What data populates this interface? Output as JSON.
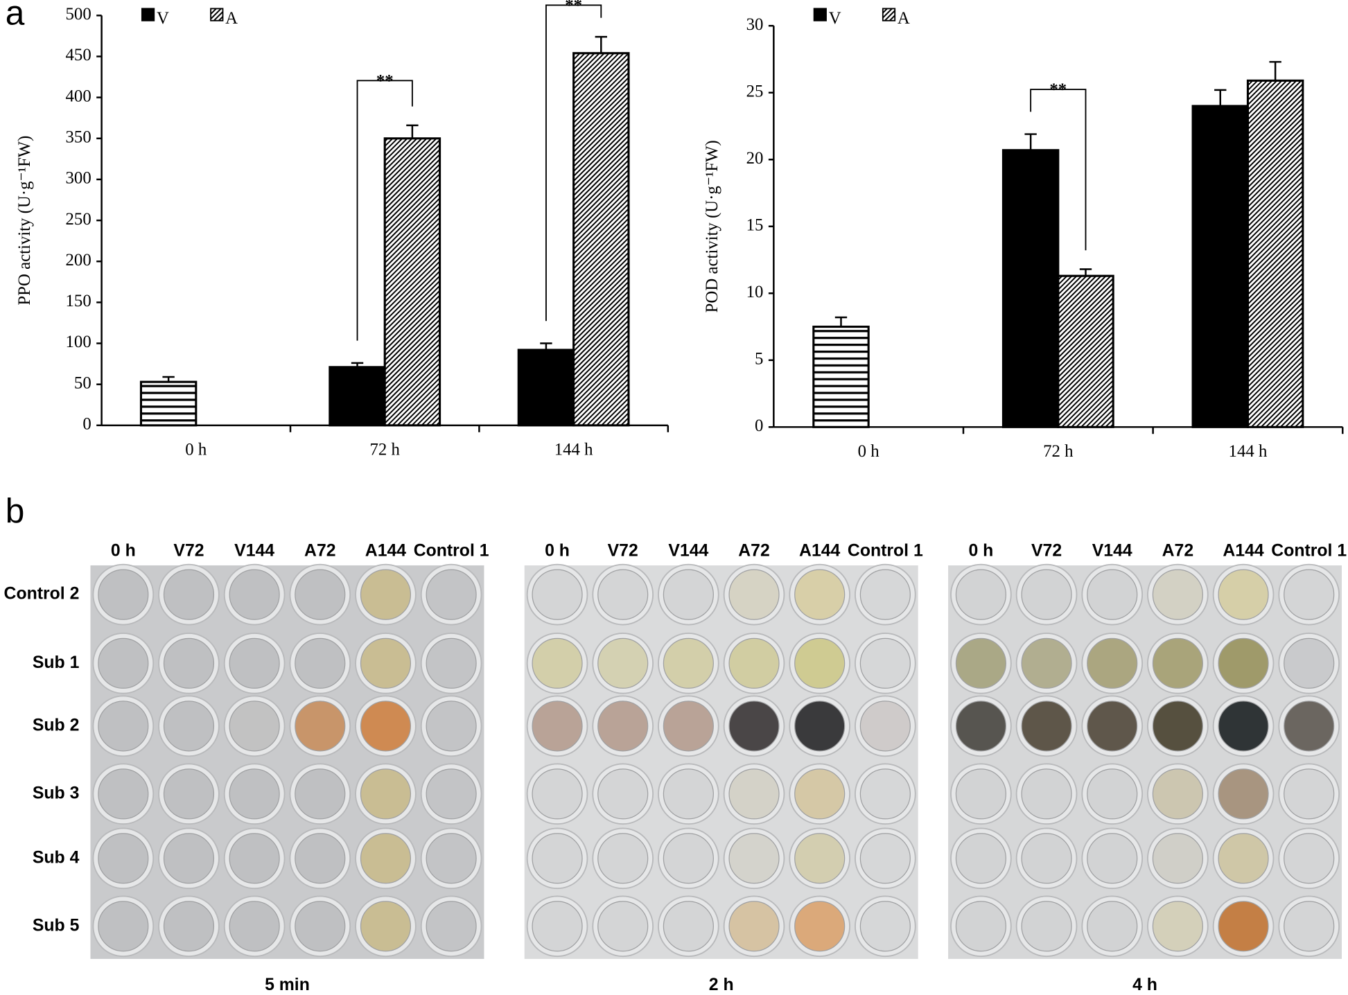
{
  "panel_labels": [
    "a",
    "b"
  ],
  "chart_data": [
    {
      "type": "bar",
      "ylabel": "PPO activity (U·g⁻¹FW)",
      "categories": [
        "0 h",
        "72 h",
        "144 h"
      ],
      "ylim": [
        0,
        500
      ],
      "yticks": [
        0,
        50,
        100,
        150,
        200,
        250,
        300,
        350,
        400,
        450,
        500
      ],
      "grid": false,
      "legend": "top-left",
      "series": [
        {
          "pattern": "horizontal",
          "color": "#000000",
          "values": [
            53,
            null,
            null
          ],
          "errors": [
            6,
            null,
            null
          ]
        },
        {
          "name": "V",
          "pattern": "solid",
          "color": "#000000",
          "values": [
            null,
            71,
            92
          ],
          "errors": [
            null,
            5,
            8
          ]
        },
        {
          "name": "A",
          "pattern": "diagonal",
          "color": "#000000",
          "values": [
            null,
            350,
            454
          ],
          "errors": [
            null,
            16,
            20
          ]
        }
      ],
      "annotations": [
        {
          "text": "**",
          "category": 1
        },
        {
          "text": "**",
          "category": 2
        }
      ]
    },
    {
      "type": "bar",
      "ylabel": "POD  activity (U·g⁻¹FW)",
      "categories": [
        "0 h",
        "72 h",
        "144 h"
      ],
      "ylim": [
        0,
        30
      ],
      "yticks": [
        0,
        5,
        10,
        15,
        20,
        25,
        30
      ],
      "grid": false,
      "legend": "top-left",
      "series": [
        {
          "pattern": "horizontal",
          "color": "#000000",
          "values": [
            7.5,
            null,
            null
          ],
          "errors": [
            0.7,
            null,
            null
          ]
        },
        {
          "name": "V",
          "pattern": "solid",
          "color": "#000000",
          "values": [
            null,
            20.7,
            24
          ],
          "errors": [
            null,
            1.2,
            1.2
          ]
        },
        {
          "name": "A",
          "pattern": "diagonal",
          "color": "#000000",
          "values": [
            null,
            11.3,
            25.9
          ],
          "errors": [
            null,
            0.5,
            1.4
          ]
        }
      ],
      "annotations": [
        {
          "text": "**",
          "category": 1
        }
      ]
    }
  ],
  "plates": [
    {
      "caption": "5 min",
      "background": "#c9cacc",
      "columns": [
        "0 h",
        "V72",
        "V144",
        "A72",
        "A144",
        "Control 1"
      ],
      "rows": [
        "Control 2",
        "Sub 1",
        "Sub 2",
        "Sub 3",
        "Sub 4",
        "Sub 5"
      ],
      "wells": [
        [
          "#bfc0c2",
          "#bfc0c2",
          "#bfc0c2",
          "#bfc0c2",
          "#c9bd93",
          "#c3c4c6"
        ],
        [
          "#bfc0c2",
          "#bfc0c2",
          "#bfc0c2",
          "#bfc0c2",
          "#c9bd93",
          "#c3c4c6"
        ],
        [
          "#bfc0c2",
          "#bfc0c2",
          "#c2c2c2",
          "#c8956a",
          "#cf8a52",
          "#c3c4c6"
        ],
        [
          "#bfc0c2",
          "#bfc0c2",
          "#bfc0c2",
          "#bfc0c2",
          "#c9bd93",
          "#c3c4c6"
        ],
        [
          "#bfc0c2",
          "#bfc0c2",
          "#bfc0c2",
          "#bfc0c2",
          "#c9bd93",
          "#c3c4c6"
        ],
        [
          "#bfc0c2",
          "#bfc0c2",
          "#bfc0c2",
          "#bfc0c2",
          "#c9bd93",
          "#c3c4c6"
        ]
      ]
    },
    {
      "caption": "2 h",
      "background": "#dadbdc",
      "columns": [
        "0 h",
        "V72",
        "V144",
        "A72",
        "A144",
        "Control 1"
      ],
      "wells": [
        [
          "#d4d5d6",
          "#d4d5d6",
          "#d4d5d6",
          "#d6d3c4",
          "#d8cfa8",
          "#d6d7d8"
        ],
        [
          "#d3cfaa",
          "#d4d1b2",
          "#d3cfaa",
          "#d1cda2",
          "#cfcb92",
          "#d6d7d8"
        ],
        [
          "#b9a397",
          "#b9a397",
          "#b9a397",
          "#4a4647",
          "#3a3a3c",
          "#cfcbca"
        ],
        [
          "#d4d5d6",
          "#d4d5d6",
          "#d4d5d6",
          "#d4d2c8",
          "#d5c8a6",
          "#d6d7d8"
        ],
        [
          "#d4d5d6",
          "#d4d5d6",
          "#d4d5d6",
          "#d4d3cc",
          "#d3ceb0",
          "#d6d7d8"
        ],
        [
          "#d4d5d6",
          "#d4d5d6",
          "#d4d5d6",
          "#d6c3a3",
          "#dba97a",
          "#d6d7d8"
        ]
      ]
    },
    {
      "caption": "4 h",
      "background": "#d6d7d8",
      "columns": [
        "0 h",
        "V72",
        "V144",
        "A72",
        "A144",
        "Control 1"
      ],
      "wells": [
        [
          "#d2d3d4",
          "#d2d3d4",
          "#d2d3d4",
          "#d3d1c4",
          "#d6cfa8",
          "#d4d5d6"
        ],
        [
          "#aaa886",
          "#b1ae90",
          "#aba680",
          "#a9a47a",
          "#9f9a6a",
          "#c9cacc"
        ],
        [
          "#575550",
          "#5e5649",
          "#5f574b",
          "#56503f",
          "#2f3436",
          "#6b6660"
        ],
        [
          "#d2d3d4",
          "#d2d3d4",
          "#d2d3d4",
          "#ccc6b0",
          "#a89580",
          "#d4d5d6"
        ],
        [
          "#d2d3d4",
          "#d2d3d4",
          "#d2d3d4",
          "#d0cfc8",
          "#cfc7a7",
          "#d4d5d6"
        ],
        [
          "#d2d3d4",
          "#d2d3d4",
          "#d2d3d4",
          "#d4d0ba",
          "#c47f45",
          "#d4d5d6"
        ]
      ]
    }
  ]
}
